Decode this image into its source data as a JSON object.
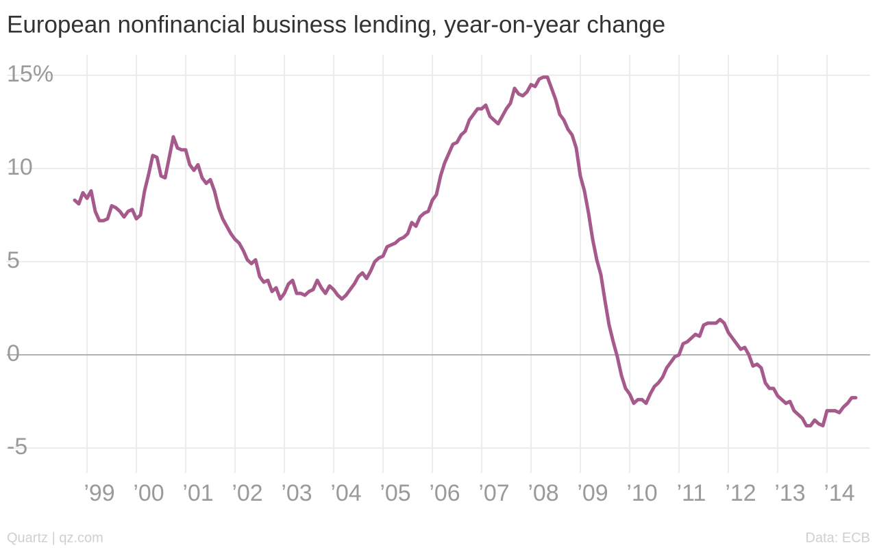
{
  "chart_data": {
    "type": "line",
    "title": "European nonfinancial business lending, year-on-year change",
    "credit": "Quartz | qz.com",
    "source": "Data: ECB",
    "color": "#a65a8c",
    "grid": true,
    "x": [
      1998.75,
      1998.833,
      1998.917,
      1999,
      1999.083,
      1999.167,
      1999.25,
      1999.333,
      1999.417,
      1999.5,
      1999.583,
      1999.667,
      1999.75,
      1999.833,
      1999.917,
      2000,
      2000.083,
      2000.167,
      2000.25,
      2000.333,
      2000.417,
      2000.5,
      2000.583,
      2000.667,
      2000.75,
      2000.833,
      2000.917,
      2001,
      2001.083,
      2001.167,
      2001.25,
      2001.333,
      2001.417,
      2001.5,
      2001.583,
      2001.667,
      2001.75,
      2001.833,
      2001.917,
      2002,
      2002.083,
      2002.167,
      2002.25,
      2002.333,
      2002.417,
      2002.5,
      2002.583,
      2002.667,
      2002.75,
      2002.833,
      2002.917,
      2003,
      2003.083,
      2003.167,
      2003.25,
      2003.333,
      2003.417,
      2003.5,
      2003.583,
      2003.667,
      2003.75,
      2003.833,
      2003.917,
      2004,
      2004.083,
      2004.167,
      2004.25,
      2004.333,
      2004.417,
      2004.5,
      2004.583,
      2004.667,
      2004.75,
      2004.833,
      2004.917,
      2005,
      2005.083,
      2005.167,
      2005.25,
      2005.333,
      2005.417,
      2005.5,
      2005.583,
      2005.667,
      2005.75,
      2005.833,
      2005.917,
      2006,
      2006.083,
      2006.167,
      2006.25,
      2006.333,
      2006.417,
      2006.5,
      2006.583,
      2006.667,
      2006.75,
      2006.833,
      2006.917,
      2007,
      2007.083,
      2007.167,
      2007.25,
      2007.333,
      2007.417,
      2007.5,
      2007.583,
      2007.667,
      2007.75,
      2007.833,
      2007.917,
      2008,
      2008.083,
      2008.167,
      2008.25,
      2008.333,
      2008.417,
      2008.5,
      2008.583,
      2008.667,
      2008.75,
      2008.833,
      2008.917,
      2009,
      2009.083,
      2009.167,
      2009.25,
      2009.333,
      2009.417,
      2009.5,
      2009.583,
      2009.667,
      2009.75,
      2009.833,
      2009.917,
      2010,
      2010.083,
      2010.167,
      2010.25,
      2010.333,
      2010.417,
      2010.5,
      2010.583,
      2010.667,
      2010.75,
      2010.833,
      2010.917,
      2011,
      2011.083,
      2011.167,
      2011.25,
      2011.333,
      2011.417,
      2011.5,
      2011.583,
      2011.667,
      2011.75,
      2011.833,
      2011.917,
      2012,
      2012.083,
      2012.167,
      2012.25,
      2012.333,
      2012.417,
      2012.5,
      2012.583,
      2012.667,
      2012.75,
      2012.833,
      2012.917,
      2013,
      2013.083,
      2013.167,
      2013.25,
      2013.333,
      2013.417,
      2013.5,
      2013.583,
      2013.667,
      2013.75,
      2013.833,
      2013.917,
      2014,
      2014.083,
      2014.167,
      2014.25,
      2014.333,
      2014.417,
      2014.5,
      2014.583
    ],
    "values": [
      8.3,
      8.1,
      8.7,
      8.4,
      8.8,
      7.7,
      7.2,
      7.2,
      7.3,
      8.0,
      7.9,
      7.7,
      7.4,
      7.7,
      7.8,
      7.3,
      7.5,
      8.8,
      9.7,
      10.7,
      10.6,
      9.6,
      9.5,
      10.6,
      11.7,
      11.1,
      11.0,
      11.0,
      10.2,
      9.9,
      10.2,
      9.5,
      9.2,
      9.4,
      8.8,
      7.9,
      7.3,
      6.9,
      6.5,
      6.2,
      6.0,
      5.6,
      5.1,
      4.9,
      5.1,
      4.2,
      3.9,
      4.0,
      3.4,
      3.6,
      3.0,
      3.3,
      3.8,
      4.0,
      3.3,
      3.3,
      3.2,
      3.4,
      3.5,
      4.0,
      3.6,
      3.3,
      3.7,
      3.5,
      3.2,
      3.0,
      3.2,
      3.5,
      3.8,
      4.2,
      4.4,
      4.1,
      4.5,
      5.0,
      5.2,
      5.3,
      5.8,
      5.9,
      6.0,
      6.2,
      6.3,
      6.5,
      7.1,
      6.9,
      7.4,
      7.6,
      7.7,
      8.3,
      8.6,
      9.6,
      10.3,
      10.8,
      11.3,
      11.4,
      11.8,
      12.0,
      12.6,
      12.9,
      13.2,
      13.2,
      13.4,
      12.8,
      12.6,
      12.4,
      12.8,
      13.2,
      13.5,
      14.3,
      14.0,
      13.9,
      14.1,
      14.5,
      14.4,
      14.8,
      14.9,
      14.9,
      14.3,
      13.7,
      12.9,
      12.6,
      12.1,
      11.8,
      11.1,
      9.6,
      8.8,
      7.6,
      6.2,
      5.1,
      4.3,
      2.9,
      1.6,
      0.7,
      -0.1,
      -1.1,
      -1.8,
      -2.1,
      -2.6,
      -2.4,
      -2.4,
      -2.6,
      -2.1,
      -1.7,
      -1.5,
      -1.2,
      -0.7,
      -0.4,
      -0.1,
      0.0,
      0.6,
      0.7,
      0.9,
      1.1,
      1.0,
      1.6,
      1.7,
      1.7,
      1.7,
      1.9,
      1.7,
      1.2,
      0.9,
      0.6,
      0.3,
      0.4,
      0.0,
      -0.6,
      -0.5,
      -0.7,
      -1.5,
      -1.8,
      -1.8,
      -2.2,
      -2.4,
      -2.6,
      -2.5,
      -3.0,
      -3.2,
      -3.4,
      -3.8,
      -3.8,
      -3.5,
      -3.7,
      -3.8,
      -3.0,
      -3.0,
      -3.0,
      -3.1,
      -2.8,
      -2.6,
      -2.3,
      -2.3
    ],
    "xlim": [
      1997.375,
      2014.875
    ],
    "xticks": [
      {
        "value": 1999,
        "label": "’99"
      },
      {
        "value": 2000,
        "label": "’00"
      },
      {
        "value": 2001,
        "label": "’01"
      },
      {
        "value": 2002,
        "label": "’02"
      },
      {
        "value": 2003,
        "label": "’03"
      },
      {
        "value": 2004,
        "label": "’04"
      },
      {
        "value": 2005,
        "label": "’05"
      },
      {
        "value": 2006,
        "label": "’06"
      },
      {
        "value": 2007,
        "label": "’07"
      },
      {
        "value": 2008,
        "label": "’08"
      },
      {
        "value": 2009,
        "label": "’09"
      },
      {
        "value": 2010,
        "label": "’10"
      },
      {
        "value": 2011,
        "label": "’11"
      },
      {
        "value": 2012,
        "label": "’12"
      },
      {
        "value": 2013,
        "label": "’13"
      },
      {
        "value": 2014,
        "label": "’14"
      }
    ],
    "ylim": [
      -6.32,
      16.1
    ],
    "yticks": [
      {
        "value": 15,
        "label": "15%"
      },
      10,
      5,
      0,
      -5
    ]
  }
}
